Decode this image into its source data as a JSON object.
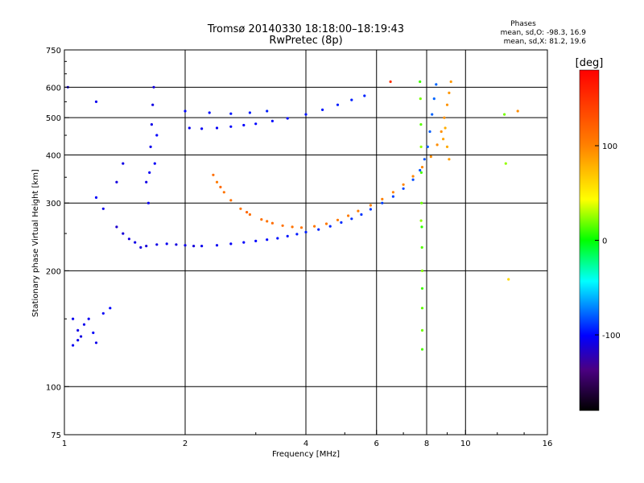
{
  "chart_data": {
    "type": "scatter",
    "title": "Tromsø 20140330 18:18:00–18:19:43",
    "subtitle": "RwPretec (8p)",
    "xlabel": "Frequency [MHz]",
    "ylabel": "Stationary phase Virtual Height [km]",
    "x_scale": "log",
    "y_scale": "log",
    "xlim": [
      1,
      16
    ],
    "ylim": [
      75,
      750
    ],
    "x_ticks": [
      1,
      2,
      4,
      6,
      8,
      10,
      16
    ],
    "x_tick_labels": [
      "1",
      "2",
      "4",
      "6",
      "8",
      "10",
      "16"
    ],
    "y_ticks": [
      75,
      100,
      200,
      300,
      400,
      500,
      600,
      750
    ],
    "y_tick_labels": [
      "75",
      "100",
      "200",
      "300",
      "400",
      "500",
      "600",
      "750"
    ],
    "x_gridlines": [
      2,
      4,
      6,
      8,
      10
    ],
    "y_gridlines": [
      100,
      200,
      300,
      400,
      500,
      600
    ],
    "grid": true,
    "stats": {
      "title": "Phases",
      "line1": "mean, sd,O: -98.3, 16.9",
      "line2": "mean, sd,X:  81.2, 19.6"
    },
    "colorbar": {
      "label": "[deg]",
      "range": [
        -180,
        180
      ],
      "ticks": [
        100,
        0,
        -100
      ],
      "tick_labels": [
        "100",
        "0",
        "-100"
      ],
      "colormap": "rainbow"
    },
    "series": [
      {
        "points": [
          [
            1.55,
            230,
            -110
          ],
          [
            1.6,
            232,
            -112
          ],
          [
            1.7,
            234,
            -108
          ],
          [
            1.8,
            235,
            -105
          ],
          [
            1.9,
            234,
            -110
          ],
          [
            2.0,
            233,
            -107
          ],
          [
            2.1,
            232,
            -111
          ],
          [
            2.2,
            232,
            -106
          ],
          [
            2.4,
            233,
            -104
          ],
          [
            2.6,
            235,
            -103
          ],
          [
            2.8,
            237,
            -102
          ],
          [
            3.0,
            239,
            -100
          ],
          [
            3.2,
            241,
            -99
          ],
          [
            3.4,
            243,
            -97
          ],
          [
            3.6,
            246,
            -96
          ],
          [
            3.8,
            249,
            -95
          ],
          [
            4.0,
            252,
            -94
          ],
          [
            4.3,
            256,
            -93
          ],
          [
            4.6,
            261,
            -92
          ],
          [
            4.9,
            267,
            -91
          ],
          [
            5.2,
            273,
            -90
          ],
          [
            5.5,
            280,
            -89
          ],
          [
            5.8,
            289,
            -88
          ],
          [
            6.2,
            300,
            -87
          ],
          [
            6.6,
            312,
            -86
          ],
          [
            7.0,
            327,
            -85
          ],
          [
            7.4,
            345,
            -84
          ],
          [
            7.7,
            365,
            -83
          ],
          [
            7.9,
            390,
            -82
          ],
          [
            8.05,
            420,
            -81
          ],
          [
            8.15,
            460,
            -80
          ],
          [
            8.25,
            510,
            -79
          ],
          [
            8.35,
            560,
            -78
          ],
          [
            8.45,
            610,
            -78
          ],
          [
            1.35,
            260,
            -115
          ],
          [
            1.4,
            250,
            -112
          ],
          [
            1.45,
            242,
            -110
          ],
          [
            1.5,
            237,
            -108
          ],
          [
            1.62,
            300,
            -105
          ],
          [
            1.63,
            360,
            -104
          ],
          [
            1.64,
            420,
            -106
          ],
          [
            1.65,
            480,
            -107
          ],
          [
            1.66,
            540,
            -109
          ],
          [
            1.67,
            600,
            -110
          ],
          [
            1.6,
            340,
            -108
          ],
          [
            1.68,
            380,
            -103
          ],
          [
            1.7,
            450,
            -101
          ],
          [
            2.05,
            470,
            -105
          ],
          [
            2.2,
            468,
            -104
          ],
          [
            2.4,
            470,
            -103
          ],
          [
            2.6,
            474,
            -102
          ],
          [
            2.8,
            478,
            -101
          ],
          [
            3.0,
            482,
            -100
          ],
          [
            3.3,
            490,
            -99
          ],
          [
            3.6,
            498,
            -98
          ],
          [
            4.0,
            510,
            -97
          ],
          [
            4.4,
            524,
            -96
          ],
          [
            4.8,
            540,
            -95
          ],
          [
            5.2,
            556,
            -94
          ],
          [
            5.6,
            570,
            -93
          ],
          [
            2.0,
            520,
            -100
          ],
          [
            2.3,
            515,
            -98
          ],
          [
            2.6,
            512,
            -96
          ],
          [
            2.9,
            515,
            -95
          ],
          [
            3.2,
            520,
            -94
          ],
          [
            1.05,
            150,
            -105
          ],
          [
            1.08,
            140,
            -108
          ],
          [
            1.1,
            135,
            -110
          ],
          [
            1.12,
            145,
            -106
          ],
          [
            1.15,
            150,
            -104
          ],
          [
            1.18,
            138,
            -102
          ],
          [
            1.2,
            130,
            -107
          ],
          [
            1.25,
            155,
            -103
          ],
          [
            1.3,
            160,
            -100
          ],
          [
            1.05,
            128,
            -104
          ],
          [
            1.08,
            132,
            -106
          ],
          [
            1.02,
            600,
            -110
          ],
          [
            1.2,
            550,
            -105
          ],
          [
            1.35,
            340,
            -110
          ],
          [
            1.4,
            380,
            -108
          ],
          [
            1.25,
            290,
            -106
          ],
          [
            1.2,
            310,
            -102
          ]
        ]
      },
      {
        "points": [
          [
            2.4,
            340,
            105
          ],
          [
            2.5,
            320,
            108
          ],
          [
            2.6,
            305,
            110
          ],
          [
            2.75,
            290,
            108
          ],
          [
            2.9,
            280,
            112
          ],
          [
            3.1,
            272,
            110
          ],
          [
            3.3,
            266,
            113
          ],
          [
            3.5,
            262,
            111
          ],
          [
            3.7,
            260,
            109
          ],
          [
            3.9,
            259,
            108
          ],
          [
            4.2,
            261,
            107
          ],
          [
            4.5,
            265,
            106
          ],
          [
            4.8,
            271,
            105
          ],
          [
            5.1,
            278,
            104
          ],
          [
            5.4,
            286,
            103
          ],
          [
            5.8,
            296,
            102
          ],
          [
            6.2,
            307,
            101
          ],
          [
            6.6,
            320,
            100
          ],
          [
            7.0,
            335,
            99
          ],
          [
            7.4,
            352,
            98
          ],
          [
            7.8,
            372,
            97
          ],
          [
            8.2,
            396,
            96
          ],
          [
            8.5,
            425,
            95
          ],
          [
            8.7,
            460,
            94
          ],
          [
            8.85,
            500,
            93
          ],
          [
            9.0,
            540,
            92
          ],
          [
            9.1,
            580,
            91
          ],
          [
            9.2,
            620,
            90
          ],
          [
            8.8,
            440,
            85
          ],
          [
            8.9,
            470,
            80
          ],
          [
            9.0,
            420,
            82
          ],
          [
            9.1,
            390,
            88
          ],
          [
            2.35,
            355,
            112
          ],
          [
            2.45,
            330,
            115
          ],
          [
            2.85,
            284,
            118
          ],
          [
            3.2,
            269,
            110
          ]
        ]
      },
      {
        "points": [
          [
            7.7,
            620,
            10
          ],
          [
            7.72,
            560,
            20
          ],
          [
            7.74,
            480,
            15
          ],
          [
            7.75,
            420,
            25
          ],
          [
            7.76,
            360,
            12
          ],
          [
            7.77,
            300,
            18
          ],
          [
            7.78,
            260,
            8
          ],
          [
            7.79,
            230,
            14
          ],
          [
            7.8,
            200,
            22
          ],
          [
            7.8,
            180,
            10
          ],
          [
            7.8,
            160,
            16
          ],
          [
            7.8,
            140,
            19
          ],
          [
            7.8,
            125,
            13
          ],
          [
            7.75,
            270,
            24
          ],
          [
            12.5,
            510,
            20
          ],
          [
            12.6,
            380,
            25
          ],
          [
            12.8,
            190,
            60
          ],
          [
            13.5,
            520,
            95
          ],
          [
            6.5,
            620,
            150
          ]
        ]
      }
    ]
  }
}
